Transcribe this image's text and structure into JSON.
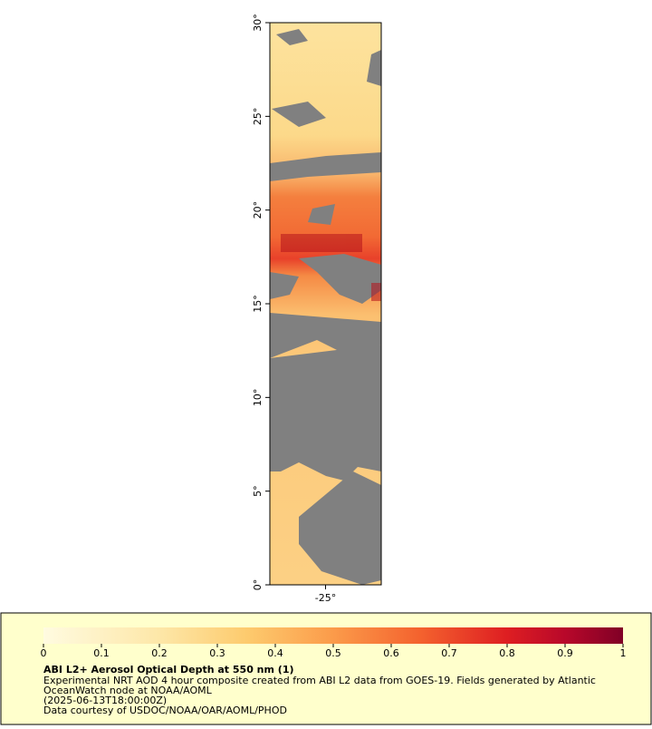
{
  "map": {
    "xlim": [
      -28,
      -22
    ],
    "xticks": [
      {
        "value": -25,
        "label": "-25°"
      }
    ],
    "ylim": [
      0,
      30
    ],
    "yticks": [
      {
        "value": 0,
        "label": "0°"
      },
      {
        "value": 5,
        "label": "5°"
      },
      {
        "value": 10,
        "label": "10°"
      },
      {
        "value": 15,
        "label": "15°"
      },
      {
        "value": 20,
        "label": "20°"
      },
      {
        "value": 25,
        "label": "25°"
      },
      {
        "value": 30,
        "label": "30°"
      }
    ]
  },
  "colorbar": {
    "lim": [
      0,
      1
    ],
    "ticks": [
      0,
      0.1,
      0.2,
      0.3,
      0.4,
      0.5,
      0.6,
      0.7,
      0.8,
      0.9,
      1
    ]
  },
  "legend": {
    "title": "ABI L2+ Aerosol Optical Depth at 550 nm (1)",
    "lines": [
      "Experimental NRT AOD 4 hour composite created from ABI L2 data from GOES-19. Fields generated by Atlantic",
      "OceanWatch node at NOAA/AOML",
      "(2025-06-13T18:00:00Z)",
      "Data courtesy of USDOC/NOAA/OAR/AOML/PHOD"
    ]
  }
}
